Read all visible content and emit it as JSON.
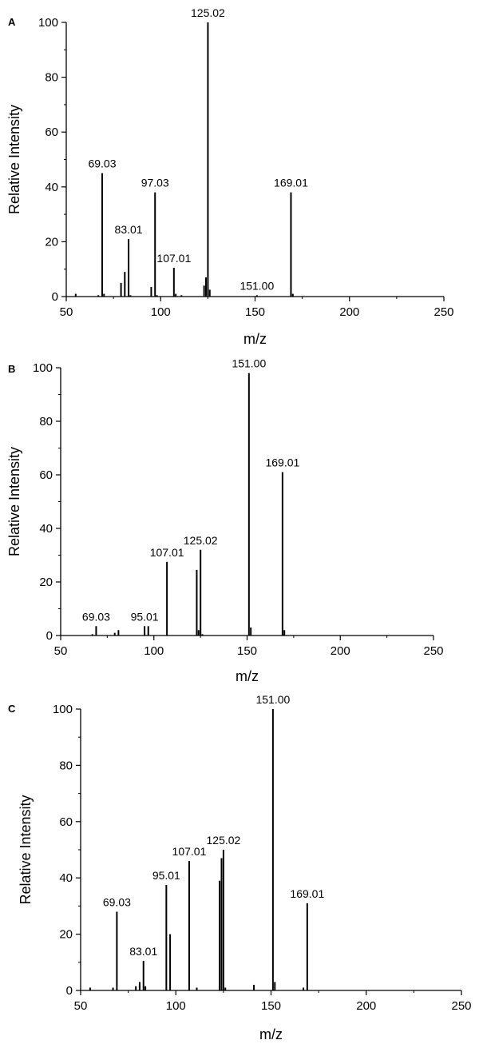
{
  "chart_data": [
    {
      "panel": "A",
      "type": "bar",
      "xlabel": "m/z",
      "ylabel": "Relative Intensity",
      "xlim": [
        50,
        250
      ],
      "ylim": [
        0,
        100
      ],
      "xticks": [
        50,
        100,
        150,
        200,
        250
      ],
      "yticks": [
        0,
        20,
        40,
        60,
        80,
        100
      ],
      "series": [
        {
          "x": [
            55,
            67,
            69.03,
            70,
            79,
            81,
            83.01,
            84,
            95,
            97.03,
            98,
            107.01,
            108,
            111,
            123,
            124,
            125.02,
            126,
            151.0,
            169.01,
            170
          ],
          "values": [
            1,
            0.5,
            45,
            1,
            5,
            9,
            21,
            0.5,
            3.5,
            38,
            0.5,
            10.5,
            1,
            0.5,
            4,
            7,
            100,
            2.5,
            0.5,
            38,
            1
          ]
        }
      ],
      "annotations": [
        {
          "x": 69.03,
          "y": 45,
          "text": "69.03"
        },
        {
          "x": 83.01,
          "y": 21,
          "text": "83.01"
        },
        {
          "x": 97.03,
          "y": 38,
          "text": "97.03"
        },
        {
          "x": 107.01,
          "y": 10.5,
          "text": "107.01"
        },
        {
          "x": 125.02,
          "y": 100,
          "text": "125.02"
        },
        {
          "x": 151.0,
          "y": 0.5,
          "text": "151.00"
        },
        {
          "x": 169.01,
          "y": 38,
          "text": "169.01"
        }
      ]
    },
    {
      "panel": "B",
      "type": "bar",
      "xlabel": "m/z",
      "ylabel": "Relative Intensity",
      "xlim": [
        50,
        250
      ],
      "ylim": [
        0,
        100
      ],
      "xticks": [
        50,
        100,
        150,
        200,
        250
      ],
      "yticks": [
        0,
        20,
        40,
        60,
        80,
        100
      ],
      "series": [
        {
          "x": [
            67,
            69.03,
            79,
            81,
            95.01,
            97,
            107.01,
            123,
            124,
            125.02,
            126,
            151.0,
            152,
            169.01,
            170
          ],
          "values": [
            0.5,
            3.5,
            1,
            2,
            3.5,
            3.5,
            27.5,
            24.5,
            2,
            32,
            0.5,
            98,
            3,
            61,
            2
          ]
        }
      ],
      "annotations": [
        {
          "x": 69.03,
          "y": 3.5,
          "text": "69.03"
        },
        {
          "x": 95.01,
          "y": 3.5,
          "text": "95.01"
        },
        {
          "x": 107.01,
          "y": 27.5,
          "text": "107.01"
        },
        {
          "x": 125.02,
          "y": 32,
          "text": "125.02"
        },
        {
          "x": 151.0,
          "y": 98,
          "text": "151.00"
        },
        {
          "x": 169.01,
          "y": 61,
          "text": "169.01"
        }
      ]
    },
    {
      "panel": "C",
      "type": "bar",
      "xlabel": "m/z",
      "ylabel": "Relative Intensity",
      "xlim": [
        50,
        250
      ],
      "ylim": [
        0,
        100
      ],
      "xticks": [
        50,
        100,
        150,
        200,
        250
      ],
      "yticks": [
        0,
        20,
        40,
        60,
        80,
        100
      ],
      "series": [
        {
          "x": [
            55,
            67,
            69.03,
            79,
            81,
            83.01,
            84,
            95.01,
            97,
            107.01,
            111,
            123,
            124,
            125.02,
            126,
            141,
            151.0,
            152,
            167,
            169.01
          ],
          "values": [
            1,
            1,
            28,
            1.5,
            3,
            10.5,
            1.5,
            37.5,
            20,
            46,
            1,
            39,
            47,
            50,
            1,
            2,
            100,
            3,
            1,
            31
          ]
        }
      ],
      "annotations": [
        {
          "x": 69.03,
          "y": 28,
          "text": "69.03"
        },
        {
          "x": 83.01,
          "y": 10.5,
          "text": "83.01"
        },
        {
          "x": 95.01,
          "y": 37.5,
          "text": "95.01"
        },
        {
          "x": 107.01,
          "y": 46,
          "text": "107.01"
        },
        {
          "x": 125.02,
          "y": 50,
          "text": "125.02"
        },
        {
          "x": 151.0,
          "y": 100,
          "text": "151.00"
        },
        {
          "x": 169.01,
          "y": 31,
          "text": "169.01"
        }
      ]
    }
  ]
}
